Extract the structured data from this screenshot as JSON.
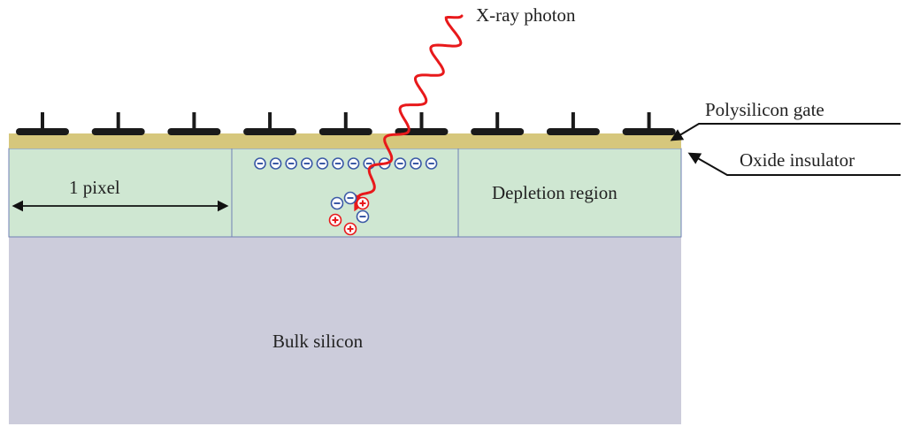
{
  "labels": {
    "photon": "X-ray photon",
    "gate": "Polysilicon gate",
    "oxide": "Oxide insulator",
    "pixel": "1 pixel",
    "depletion": "Depletion region",
    "bulk": "Bulk silicon"
  },
  "colors": {
    "oxide": "#d6c77c",
    "depletion": "#cfe7d2",
    "bulk": "#ccccdb",
    "gate": "#1a1a1a",
    "photon": "#e8191b",
    "electron": "#3b5aa6",
    "hole": "#e8191b",
    "boundary": "#6f7fb4"
  },
  "gate_count": 9,
  "trapped_electron_count": 12
}
